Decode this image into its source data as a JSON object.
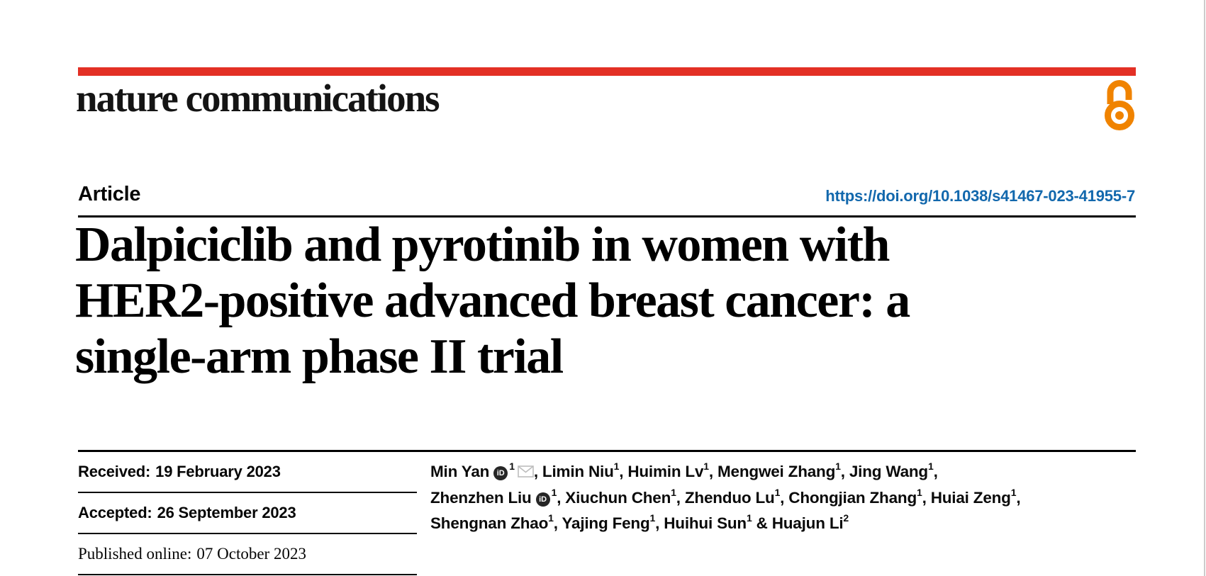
{
  "colors": {
    "brand_red": "#e33025",
    "open_access_orange": "#f08300",
    "link_blue": "#1268ad",
    "icon_gray": "#bdbdbd",
    "page_edge_gray": "#cccccc"
  },
  "header": {
    "journal_name": "nature communications"
  },
  "article": {
    "type_label": "Article",
    "doi_link": "https://doi.org/10.1038/s41467-023-41955-7",
    "title_lines": [
      "Dalpiciclib and pyrotinib in women with",
      "HER2-positive advanced breast cancer: a",
      "single-arm phase II trial"
    ]
  },
  "dates": [
    {
      "label": "Received:",
      "value": "19 February 2023",
      "style": "sans"
    },
    {
      "label": "Accepted:",
      "value": "26 September 2023",
      "style": "sans"
    },
    {
      "label": "Published online:",
      "value": "07 October 2023",
      "style": "serif"
    }
  ],
  "authors": {
    "orcid_badge_text": "iD",
    "lines": [
      [
        {
          "name": "Min Yan",
          "sup": "1",
          "orcid": true,
          "email": true,
          "tail": ", "
        },
        {
          "name": "Limin Niu",
          "sup": "1",
          "tail": ", "
        },
        {
          "name": "Huimin Lv",
          "sup": "1",
          "tail": ", "
        },
        {
          "name": "Mengwei Zhang",
          "sup": "1",
          "tail": ", "
        },
        {
          "name": "Jing Wang",
          "sup": "1",
          "tail": ","
        }
      ],
      [
        {
          "name": "Zhenzhen Liu",
          "sup": "1",
          "orcid": true,
          "tail": ", "
        },
        {
          "name": "Xiuchun Chen",
          "sup": "1",
          "tail": ", "
        },
        {
          "name": "Zhenduo Lu",
          "sup": "1",
          "tail": ", "
        },
        {
          "name": "Chongjian Zhang",
          "sup": "1",
          "tail": ", "
        },
        {
          "name": "Huiai Zeng",
          "sup": "1",
          "tail": ","
        }
      ],
      [
        {
          "name": "Shengnan Zhao",
          "sup": "1",
          "tail": ", "
        },
        {
          "name": "Yajing Feng",
          "sup": "1",
          "tail": ", "
        },
        {
          "name": "Huihui Sun",
          "sup": "1",
          "tail": " & "
        },
        {
          "name": "Huajun Li",
          "sup": "2"
        }
      ]
    ]
  }
}
